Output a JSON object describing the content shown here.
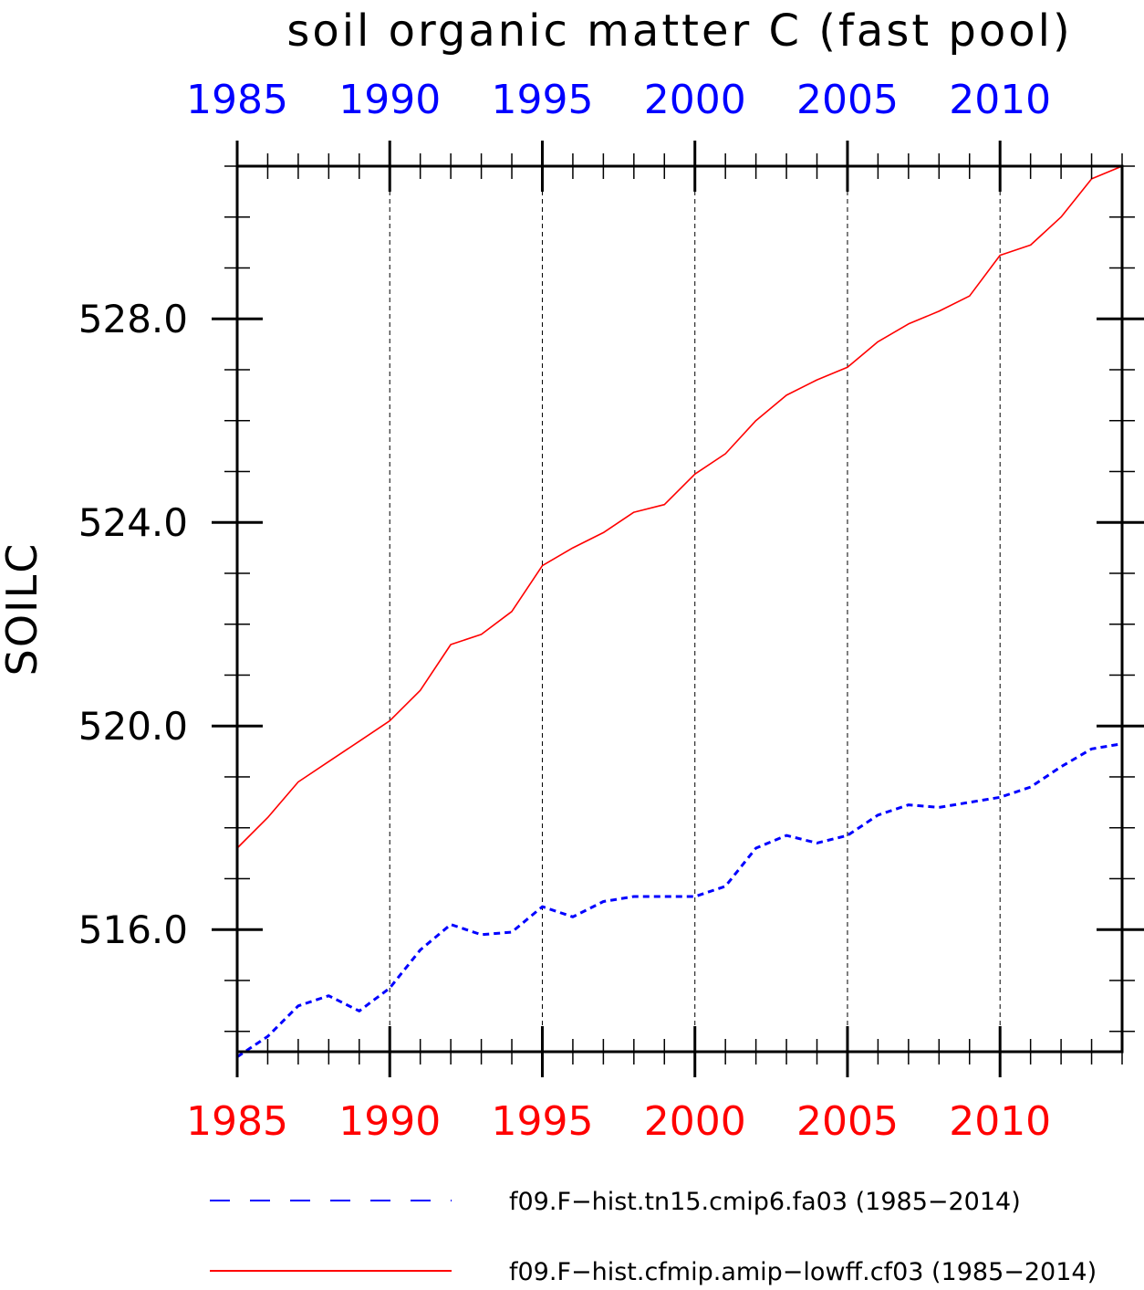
{
  "chart_data": {
    "type": "line",
    "title": "soil organic matter C (fast pool)",
    "ylabel": "SOILC",
    "xlim": [
      1985,
      2014
    ],
    "ylim": [
      513.6,
      531.0
    ],
    "yticks": [
      516.0,
      520.0,
      524.0,
      528.0
    ],
    "ytick_labels": [
      "516.0",
      "520.0",
      "524.0",
      "528.0"
    ],
    "xticks": [
      1985,
      1990,
      1995,
      2000,
      2005,
      2010
    ],
    "xtick_labels": [
      "1985",
      "1990",
      "1995",
      "2000",
      "2005",
      "2010"
    ],
    "grid": "vertical dashed at major x ticks",
    "legend_position": "bottom",
    "x": [
      1985,
      1986,
      1987,
      1988,
      1989,
      1990,
      1991,
      1992,
      1993,
      1994,
      1995,
      1996,
      1997,
      1998,
      1999,
      2000,
      2001,
      2002,
      2003,
      2004,
      2005,
      2006,
      2007,
      2008,
      2009,
      2010,
      2011,
      2012,
      2013,
      2014
    ],
    "series": [
      {
        "name": "f09.F−hist.tn15.cmip6.fa03 (1985−2014)",
        "color": "#0000ff",
        "style": "dashed",
        "values": [
          513.5,
          513.9,
          514.5,
          514.7,
          514.4,
          514.85,
          515.6,
          516.1,
          515.9,
          515.95,
          516.45,
          516.25,
          516.55,
          516.65,
          516.65,
          516.65,
          516.85,
          517.6,
          517.85,
          517.7,
          517.85,
          518.25,
          518.45,
          518.4,
          518.5,
          518.6,
          518.8,
          519.2,
          519.55,
          519.65
        ]
      },
      {
        "name": "f09.F−hist.cfmip.amip−lowff.cf03 (1985−2014)",
        "color": "#ff0000",
        "style": "solid",
        "values": [
          517.6,
          518.2,
          518.9,
          519.3,
          519.7,
          520.1,
          520.7,
          521.6,
          521.8,
          522.25,
          523.15,
          523.5,
          523.8,
          524.2,
          524.35,
          524.95,
          525.35,
          526.0,
          526.5,
          526.8,
          527.05,
          527.55,
          527.9,
          528.15,
          528.45,
          529.25,
          529.45,
          530.0,
          530.75,
          531.0
        ]
      }
    ]
  }
}
